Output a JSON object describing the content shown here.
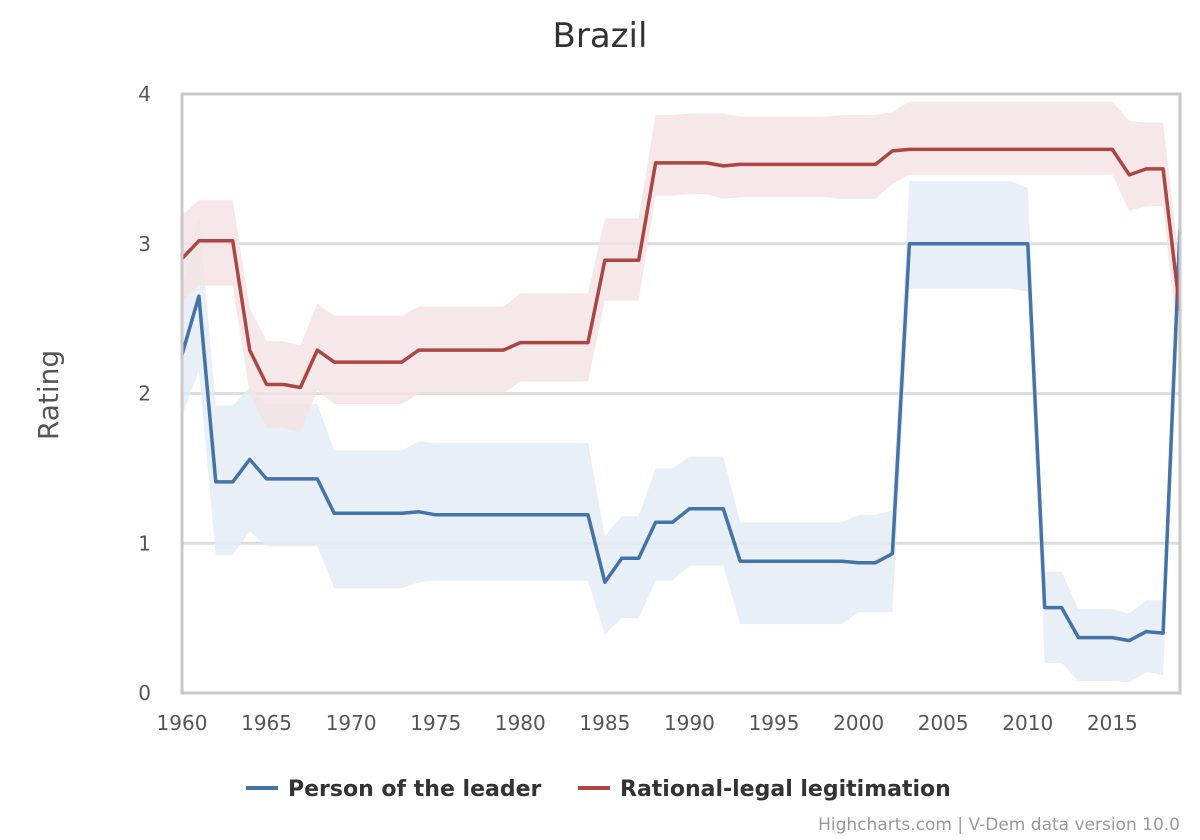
{
  "chart_data": {
    "type": "line",
    "title": "Brazil",
    "xlabel": "",
    "ylabel": "Rating",
    "xlim": [
      1960,
      2019
    ],
    "ylim": [
      0,
      4
    ],
    "x_ticks": [
      "1960",
      "1965",
      "1970",
      "1975",
      "1980",
      "1985",
      "1990",
      "1995",
      "2000",
      "2005",
      "2010",
      "2015"
    ],
    "y_ticks": [
      "0",
      "1",
      "2",
      "3",
      "4"
    ],
    "grid": true,
    "legend": "bottom-center",
    "credits": "Highcharts.com | V-Dem data version 10.0",
    "x": [
      1960,
      1961,
      1962,
      1963,
      1964,
      1965,
      1966,
      1967,
      1968,
      1969,
      1970,
      1971,
      1972,
      1973,
      1974,
      1975,
      1976,
      1977,
      1978,
      1979,
      1980,
      1981,
      1982,
      1983,
      1984,
      1985,
      1986,
      1987,
      1988,
      1989,
      1990,
      1991,
      1992,
      1993,
      1994,
      1995,
      1996,
      1997,
      1998,
      1999,
      2000,
      2001,
      2002,
      2003,
      2004,
      2005,
      2006,
      2007,
      2008,
      2009,
      2010,
      2011,
      2012,
      2013,
      2014,
      2015,
      2016,
      2017,
      2018,
      2019
    ],
    "series": [
      {
        "name": "Person of the leader",
        "color": "#4572a7",
        "band_color": "#e4ebf4",
        "values": [
          2.26,
          2.65,
          1.41,
          1.41,
          1.56,
          1.43,
          1.43,
          1.43,
          1.43,
          1.2,
          1.2,
          1.2,
          1.2,
          1.2,
          1.21,
          1.19,
          1.19,
          1.19,
          1.19,
          1.19,
          1.19,
          1.19,
          1.19,
          1.19,
          1.19,
          0.74,
          0.9,
          0.9,
          1.14,
          1.14,
          1.23,
          1.23,
          1.23,
          0.88,
          0.88,
          0.88,
          0.88,
          0.88,
          0.88,
          0.88,
          0.87,
          0.87,
          0.93,
          3.0,
          3.0,
          3.0,
          3.0,
          3.0,
          3.0,
          3.0,
          3.0,
          0.57,
          0.57,
          0.37,
          0.37,
          0.37,
          0.35,
          0.41,
          0.4,
          3.1
        ],
        "low": [
          1.85,
          2.15,
          0.92,
          0.92,
          1.08,
          0.98,
          0.98,
          0.98,
          0.98,
          0.7,
          0.7,
          0.7,
          0.7,
          0.7,
          0.74,
          0.75,
          0.75,
          0.75,
          0.75,
          0.75,
          0.75,
          0.75,
          0.75,
          0.75,
          0.75,
          0.39,
          0.5,
          0.5,
          0.75,
          0.75,
          0.85,
          0.85,
          0.85,
          0.46,
          0.46,
          0.46,
          0.46,
          0.46,
          0.46,
          0.46,
          0.54,
          0.54,
          0.54,
          2.7,
          2.7,
          2.7,
          2.7,
          2.7,
          2.7,
          2.7,
          2.68,
          0.2,
          0.2,
          0.08,
          0.08,
          0.08,
          0.07,
          0.14,
          0.12,
          2.7
        ],
        "high": [
          2.7,
          3.2,
          1.92,
          1.92,
          2.04,
          1.93,
          1.93,
          1.93,
          1.93,
          1.62,
          1.62,
          1.62,
          1.62,
          1.62,
          1.68,
          1.67,
          1.67,
          1.67,
          1.67,
          1.67,
          1.67,
          1.67,
          1.67,
          1.67,
          1.67,
          1.05,
          1.18,
          1.18,
          1.5,
          1.5,
          1.58,
          1.58,
          1.58,
          1.14,
          1.14,
          1.14,
          1.14,
          1.14,
          1.14,
          1.14,
          1.19,
          1.19,
          1.22,
          3.42,
          3.42,
          3.42,
          3.42,
          3.42,
          3.42,
          3.42,
          3.37,
          0.81,
          0.81,
          0.56,
          0.56,
          0.56,
          0.53,
          0.62,
          0.62,
          3.45
        ]
      },
      {
        "name": "Rational-legal legitimation",
        "color": "#aa4643",
        "band_color": "#f4e2e2",
        "values": [
          2.9,
          3.02,
          3.02,
          3.02,
          2.29,
          2.06,
          2.06,
          2.04,
          2.29,
          2.21,
          2.21,
          2.21,
          2.21,
          2.21,
          2.29,
          2.29,
          2.29,
          2.29,
          2.29,
          2.29,
          2.34,
          2.34,
          2.34,
          2.34,
          2.34,
          2.89,
          2.89,
          2.89,
          3.54,
          3.54,
          3.54,
          3.54,
          3.52,
          3.53,
          3.53,
          3.53,
          3.53,
          3.53,
          3.53,
          3.53,
          3.53,
          3.53,
          3.62,
          3.63,
          3.63,
          3.63,
          3.63,
          3.63,
          3.63,
          3.63,
          3.63,
          3.63,
          3.63,
          3.63,
          3.63,
          3.63,
          3.46,
          3.5,
          3.5,
          2.55
        ],
        "low": [
          2.62,
          2.72,
          2.72,
          2.72,
          2.0,
          1.77,
          1.77,
          1.74,
          2.02,
          1.93,
          1.93,
          1.93,
          1.93,
          1.93,
          2.0,
          2.0,
          2.0,
          2.0,
          2.0,
          2.0,
          2.08,
          2.08,
          2.08,
          2.08,
          2.08,
          2.62,
          2.62,
          2.62,
          3.32,
          3.32,
          3.33,
          3.33,
          3.3,
          3.31,
          3.31,
          3.31,
          3.31,
          3.31,
          3.31,
          3.3,
          3.3,
          3.3,
          3.4,
          3.46,
          3.46,
          3.46,
          3.46,
          3.46,
          3.46,
          3.46,
          3.46,
          3.46,
          3.46,
          3.46,
          3.46,
          3.46,
          3.22,
          3.25,
          3.25,
          2.2
        ],
        "high": [
          3.19,
          3.29,
          3.29,
          3.29,
          2.57,
          2.35,
          2.35,
          2.32,
          2.6,
          2.52,
          2.52,
          2.52,
          2.52,
          2.52,
          2.58,
          2.58,
          2.58,
          2.58,
          2.58,
          2.58,
          2.67,
          2.67,
          2.67,
          2.67,
          2.67,
          3.17,
          3.17,
          3.17,
          3.86,
          3.86,
          3.87,
          3.87,
          3.87,
          3.85,
          3.85,
          3.85,
          3.85,
          3.85,
          3.85,
          3.86,
          3.86,
          3.86,
          3.88,
          3.95,
          3.95,
          3.95,
          3.95,
          3.95,
          3.95,
          3.95,
          3.95,
          3.95,
          3.95,
          3.95,
          3.95,
          3.95,
          3.82,
          3.81,
          3.81,
          2.85
        ]
      }
    ]
  }
}
